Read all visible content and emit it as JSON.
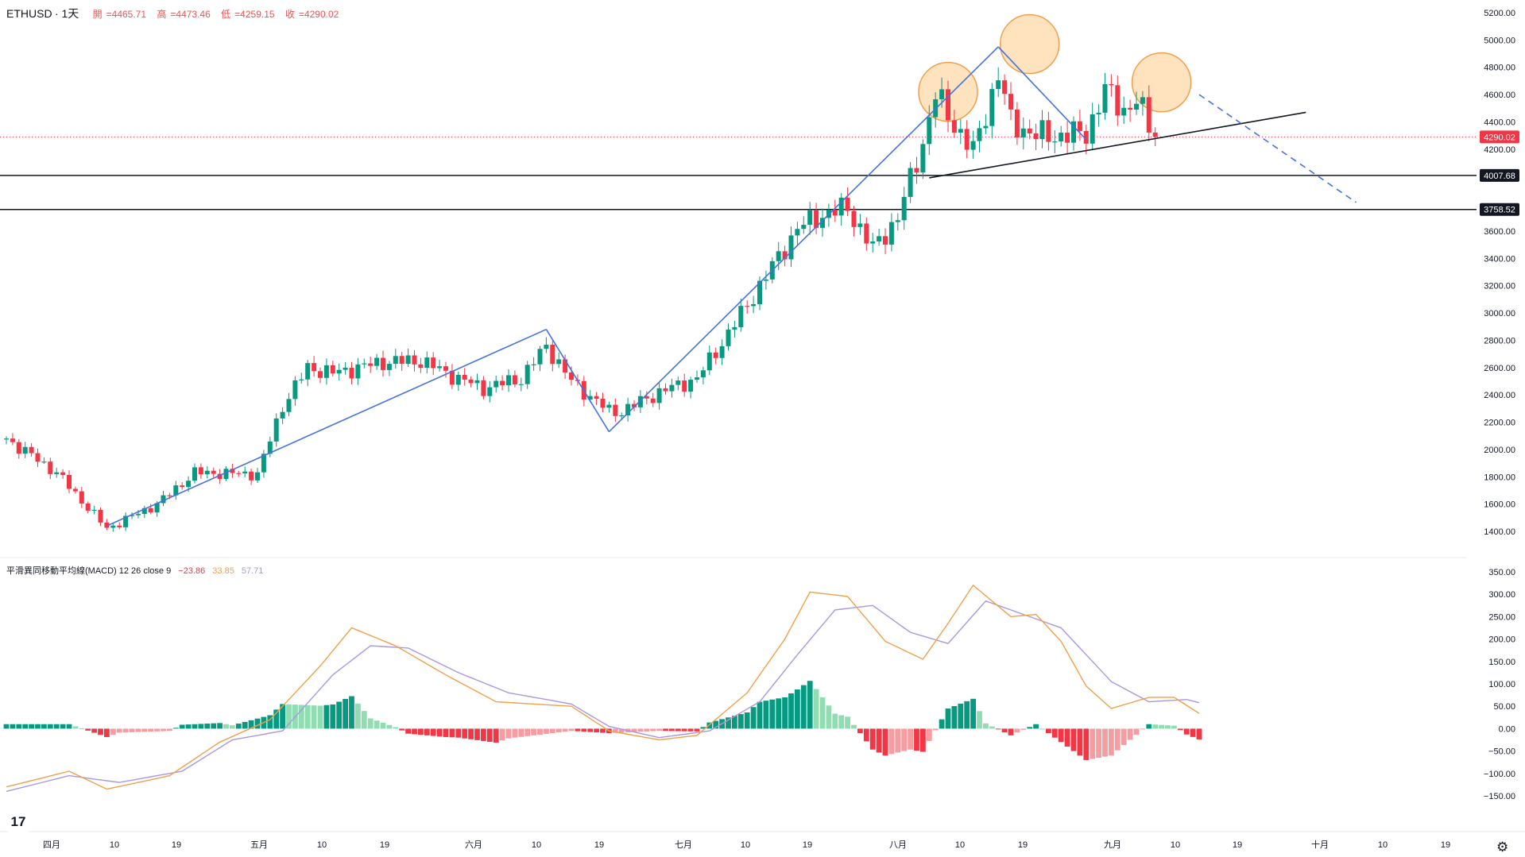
{
  "header": {
    "symbol": "ETHUSD",
    "interval": "1天",
    "open_label": "開",
    "open": "4465.71",
    "high_label": "高",
    "high": "4473.46",
    "low_label": "低",
    "low": "4259.15",
    "close_label": "收",
    "close": "4290.02"
  },
  "macd_header": {
    "title": "平滑異同移動平均線(MACD) 12 26 close 9",
    "hist": "−23.86",
    "macd": "33.85",
    "signal": "57.71"
  },
  "colors": {
    "up": "#089981",
    "down": "#f23645",
    "trend": "#4472e0",
    "level": "#131722",
    "circle_fill": "#ffd8a8",
    "circle_stroke": "#f0a04b",
    "macd_line": "#f0a04b",
    "signal_line": "#a997e0",
    "hist_up_strong": "#089981",
    "hist_up_weak": "#8fddb0",
    "hist_down_strong": "#f23645",
    "hist_down_weak": "#f79ca0"
  },
  "axis": {
    "price_ticks": [
      "5200.00",
      "5000.00",
      "4800.00",
      "4600.00",
      "4400.00",
      "4200.00",
      "3600.00",
      "3400.00",
      "3200.00",
      "3000.00",
      "2800.00",
      "2600.00",
      "2400.00",
      "2200.00",
      "2000.00",
      "1800.00",
      "1600.00",
      "1400.00"
    ],
    "macd_ticks": [
      "350.00",
      "300.00",
      "250.00",
      "200.00",
      "150.00",
      "100.00",
      "50.00",
      "0.00",
      "−50.00",
      "−100.00",
      "−150.00"
    ],
    "time_labels": [
      "四月",
      "10",
      "19",
      "五月",
      "10",
      "19",
      "六月",
      "10",
      "19",
      "七月",
      "10",
      "19",
      "八月",
      "10",
      "19",
      "九月",
      "10",
      "19",
      "十月",
      "10",
      "19"
    ],
    "price_labels": [
      "4290.02",
      "4007.68",
      "3758.52"
    ]
  },
  "logo_text": "17",
  "gear_icon": "⚙",
  "chart_data": [
    {
      "type": "candlestick",
      "title": "ETHUSD · 1天",
      "x_axis": "date (daily), approx. late March – late September",
      "ylim": [
        1300,
        5300
      ],
      "horizontal_levels": [
        4007.68,
        3758.52
      ],
      "last_price": 4290.02,
      "anchors": [
        {
          "d": 0,
          "p": 2080
        },
        {
          "d": 8,
          "p": 1830
        },
        {
          "d": 16,
          "p": 1420
        },
        {
          "d": 24,
          "p": 1600
        },
        {
          "d": 30,
          "p": 1830
        },
        {
          "d": 40,
          "p": 1820
        },
        {
          "d": 44,
          "p": 2320
        },
        {
          "d": 48,
          "p": 2600
        },
        {
          "d": 52,
          "p": 2560
        },
        {
          "d": 60,
          "p": 2640
        },
        {
          "d": 66,
          "p": 2650
        },
        {
          "d": 72,
          "p": 2520
        },
        {
          "d": 76,
          "p": 2450
        },
        {
          "d": 82,
          "p": 2520
        },
        {
          "d": 86,
          "p": 2760
        },
        {
          "d": 90,
          "p": 2500
        },
        {
          "d": 96,
          "p": 2280
        },
        {
          "d": 98,
          "p": 2280
        },
        {
          "d": 104,
          "p": 2420
        },
        {
          "d": 110,
          "p": 2520
        },
        {
          "d": 115,
          "p": 2850
        },
        {
          "d": 120,
          "p": 3200
        },
        {
          "d": 126,
          "p": 3620
        },
        {
          "d": 130,
          "p": 3720
        },
        {
          "d": 134,
          "p": 3770
        },
        {
          "d": 138,
          "p": 3470
        },
        {
          "d": 142,
          "p": 3700
        },
        {
          "d": 146,
          "p": 4250
        },
        {
          "d": 148,
          "p": 4600
        },
        {
          "d": 150,
          "p": 4450
        },
        {
          "d": 154,
          "p": 4180
        },
        {
          "d": 158,
          "p": 4750
        },
        {
          "d": 160,
          "p": 4400
        },
        {
          "d": 164,
          "p": 4300
        },
        {
          "d": 168,
          "p": 4300
        },
        {
          "d": 172,
          "p": 4320
        },
        {
          "d": 175,
          "p": 4630
        },
        {
          "d": 178,
          "p": 4490
        },
        {
          "d": 180,
          "p": 4550
        },
        {
          "d": 183,
          "p": 4290
        }
      ],
      "trendlines": [
        {
          "name": "uptrend-1",
          "from": [
            16,
            1440
          ],
          "to": [
            86,
            2880
          ]
        },
        {
          "name": "pullback",
          "from": [
            86,
            2880
          ],
          "to": [
            96,
            2130
          ]
        },
        {
          "name": "uptrend-2",
          "from": [
            96,
            2130
          ],
          "to": [
            158,
            4950
          ]
        },
        {
          "name": "neckline-down",
          "from": [
            158,
            4950
          ],
          "to": [
            172,
            4270
          ]
        },
        {
          "name": "neckline",
          "from": [
            147,
            3990
          ],
          "to": [
            207,
            4470
          ]
        },
        {
          "name": "projection",
          "from": [
            190,
            4600
          ],
          "to": [
            215,
            3810
          ],
          "dashed": true
        }
      ],
      "highlighted_peaks": [
        {
          "label": "left shoulder",
          "d": 150,
          "p": 4620
        },
        {
          "label": "head",
          "d": 163,
          "p": 4970
        },
        {
          "label": "right shoulder",
          "d": 184,
          "p": 4690
        }
      ]
    },
    {
      "type": "macd",
      "title": "平滑異同移動平均線(MACD) 12 26 close 9",
      "ylim": [
        -170,
        370
      ],
      "macd_anchors": [
        {
          "d": 0,
          "v": -130
        },
        {
          "d": 10,
          "v": -95
        },
        {
          "d": 16,
          "v": -135
        },
        {
          "d": 26,
          "v": -105
        },
        {
          "d": 34,
          "v": -30
        },
        {
          "d": 42,
          "v": 20
        },
        {
          "d": 50,
          "v": 140
        },
        {
          "d": 55,
          "v": 225
        },
        {
          "d": 62,
          "v": 185
        },
        {
          "d": 70,
          "v": 120
        },
        {
          "d": 78,
          "v": 60
        },
        {
          "d": 84,
          "v": 55
        },
        {
          "d": 90,
          "v": 50
        },
        {
          "d": 96,
          "v": -5
        },
        {
          "d": 104,
          "v": -25
        },
        {
          "d": 110,
          "v": -15
        },
        {
          "d": 118,
          "v": 80
        },
        {
          "d": 124,
          "v": 200
        },
        {
          "d": 128,
          "v": 305
        },
        {
          "d": 134,
          "v": 295
        },
        {
          "d": 140,
          "v": 195
        },
        {
          "d": 146,
          "v": 155
        },
        {
          "d": 150,
          "v": 235
        },
        {
          "d": 154,
          "v": 320
        },
        {
          "d": 160,
          "v": 250
        },
        {
          "d": 164,
          "v": 255
        },
        {
          "d": 168,
          "v": 195
        },
        {
          "d": 172,
          "v": 95
        },
        {
          "d": 176,
          "v": 45
        },
        {
          "d": 182,
          "v": 70
        },
        {
          "d": 186,
          "v": 70
        },
        {
          "d": 190,
          "v": 34
        }
      ],
      "signal_anchors": [
        {
          "d": 0,
          "v": -140
        },
        {
          "d": 10,
          "v": -105
        },
        {
          "d": 18,
          "v": -120
        },
        {
          "d": 28,
          "v": -95
        },
        {
          "d": 36,
          "v": -25
        },
        {
          "d": 44,
          "v": -5
        },
        {
          "d": 52,
          "v": 120
        },
        {
          "d": 58,
          "v": 185
        },
        {
          "d": 64,
          "v": 180
        },
        {
          "d": 72,
          "v": 125
        },
        {
          "d": 80,
          "v": 80
        },
        {
          "d": 90,
          "v": 55
        },
        {
          "d": 96,
          "v": 5
        },
        {
          "d": 104,
          "v": -20
        },
        {
          "d": 112,
          "v": -5
        },
        {
          "d": 120,
          "v": 60
        },
        {
          "d": 126,
          "v": 165
        },
        {
          "d": 132,
          "v": 265
        },
        {
          "d": 138,
          "v": 275
        },
        {
          "d": 144,
          "v": 215
        },
        {
          "d": 150,
          "v": 190
        },
        {
          "d": 156,
          "v": 285
        },
        {
          "d": 162,
          "v": 255
        },
        {
          "d": 168,
          "v": 225
        },
        {
          "d": 176,
          "v": 105
        },
        {
          "d": 182,
          "v": 60
        },
        {
          "d": 188,
          "v": 65
        },
        {
          "d": 190,
          "v": 58
        }
      ]
    }
  ]
}
